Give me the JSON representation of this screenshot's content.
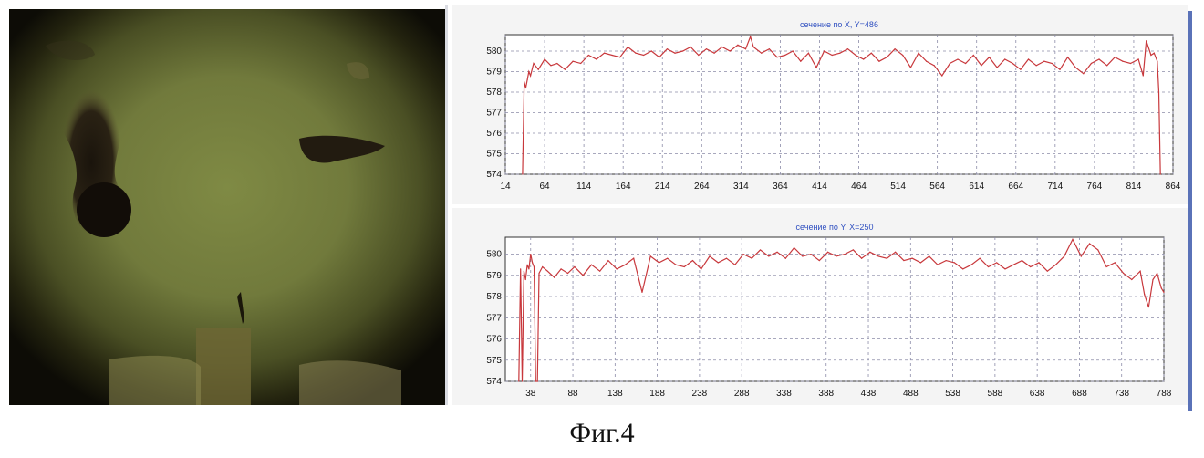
{
  "caption": "Фиг.4",
  "colors": {
    "line": "#c8383c",
    "grid": "#8c8ca8",
    "title": "#3050c0",
    "frame_bg": "#ffffff",
    "panel_bg": "#f4f4f4"
  },
  "photo": {
    "description_icon": "photo-image"
  },
  "chart_data": [
    {
      "type": "line",
      "title": "сечение по X, Y=486",
      "xlabel": "",
      "ylabel": "",
      "x_ticks": [
        14,
        64,
        114,
        164,
        214,
        264,
        314,
        364,
        414,
        464,
        514,
        564,
        614,
        664,
        714,
        764,
        814,
        864
      ],
      "y_ticks": [
        574,
        575,
        576,
        577,
        578,
        579,
        580
      ],
      "xlim": [
        14,
        864
      ],
      "ylim": [
        574,
        580.8
      ],
      "grid": true,
      "series": [
        {
          "x": [
            36,
            38,
            40,
            42,
            44,
            46,
            50,
            56,
            64,
            72,
            80,
            90,
            100,
            110,
            120,
            130,
            140,
            150,
            160,
            170,
            180,
            190,
            200,
            210,
            220,
            230,
            240,
            250,
            260,
            270,
            280,
            290,
            300,
            310,
            320,
            326,
            330,
            340,
            350,
            360,
            370,
            380,
            390,
            400,
            410,
            420,
            430,
            440,
            450,
            460,
            470,
            480,
            490,
            500,
            510,
            520,
            530,
            540,
            550,
            560,
            570,
            580,
            590,
            600,
            610,
            620,
            630,
            640,
            650,
            660,
            670,
            680,
            690,
            700,
            710,
            720,
            730,
            740,
            750,
            760,
            770,
            780,
            790,
            800,
            810,
            820,
            826,
            830,
            836,
            840,
            844,
            846,
            848
          ],
          "y": [
            574,
            578.5,
            578.2,
            578.6,
            579,
            578.8,
            579.4,
            579.1,
            579.6,
            579.3,
            579.4,
            579.1,
            579.5,
            579.4,
            579.8,
            579.6,
            579.9,
            579.8,
            579.7,
            580.2,
            579.9,
            579.8,
            580,
            579.7,
            580.1,
            579.9,
            580,
            580.2,
            579.8,
            580.1,
            579.9,
            580.2,
            580,
            580.3,
            580.1,
            580.7,
            580.2,
            579.9,
            580.1,
            579.7,
            579.8,
            580,
            579.5,
            579.9,
            579.2,
            580,
            579.8,
            579.9,
            580.1,
            579.8,
            579.6,
            579.9,
            579.5,
            579.7,
            580.1,
            579.8,
            579.2,
            579.9,
            579.5,
            579.3,
            578.8,
            579.4,
            579.6,
            579.4,
            579.8,
            579.3,
            579.7,
            579.2,
            579.6,
            579.4,
            579.1,
            579.6,
            579.3,
            579.5,
            579.4,
            579.1,
            579.7,
            579.2,
            578.9,
            579.4,
            579.6,
            579.3,
            579.7,
            579.5,
            579.4,
            579.6,
            578.8,
            580.5,
            579.8,
            579.9,
            579.5,
            578,
            574
          ]
        }
      ]
    },
    {
      "type": "line",
      "title": "сечение по Y, X=250",
      "xlabel": "",
      "ylabel": "",
      "x_ticks": [
        38,
        88,
        138,
        188,
        238,
        288,
        338,
        388,
        438,
        488,
        538,
        588,
        638,
        688,
        738,
        788
      ],
      "y_ticks": [
        574,
        575,
        576,
        577,
        578,
        579,
        580
      ],
      "xlim": [
        8,
        788
      ],
      "ylim": [
        574,
        580.8
      ],
      "grid": true,
      "series": [
        {
          "x": [
            24,
            26,
            28,
            30,
            32,
            34,
            36,
            38,
            40,
            42,
            44,
            46,
            48,
            52,
            58,
            66,
            74,
            82,
            90,
            100,
            110,
            120,
            130,
            140,
            150,
            160,
            170,
            180,
            190,
            200,
            210,
            220,
            230,
            240,
            250,
            260,
            270,
            280,
            290,
            300,
            310,
            320,
            330,
            340,
            350,
            360,
            370,
            380,
            390,
            400,
            410,
            420,
            430,
            440,
            450,
            460,
            470,
            480,
            490,
            500,
            510,
            520,
            530,
            540,
            550,
            560,
            570,
            580,
            590,
            600,
            610,
            620,
            630,
            640,
            650,
            660,
            670,
            680,
            690,
            700,
            710,
            720,
            730,
            740,
            750,
            760,
            765,
            770,
            775,
            780,
            785,
            788
          ],
          "y": [
            574,
            579.3,
            574,
            579.2,
            578.8,
            579.5,
            579.3,
            580,
            579.6,
            579.4,
            574,
            574,
            579.1,
            579.4,
            579.2,
            578.9,
            579.3,
            579.1,
            579.4,
            579,
            579.5,
            579.2,
            579.7,
            579.3,
            579.5,
            579.8,
            578.2,
            579.9,
            579.6,
            579.8,
            579.5,
            579.4,
            579.7,
            579.3,
            579.9,
            579.6,
            579.8,
            579.5,
            580,
            579.8,
            580.2,
            579.9,
            580.1,
            579.8,
            580.3,
            579.9,
            580,
            579.7,
            580.1,
            579.9,
            580,
            580.2,
            579.8,
            580.1,
            579.9,
            579.8,
            580.1,
            579.7,
            579.8,
            579.6,
            579.9,
            579.5,
            579.7,
            579.6,
            579.3,
            579.5,
            579.8,
            579.4,
            579.6,
            579.3,
            579.5,
            579.7,
            579.4,
            579.6,
            579.2,
            579.5,
            579.9,
            580.7,
            579.9,
            580.5,
            580.2,
            579.4,
            579.6,
            579.1,
            578.8,
            579.2,
            578.1,
            577.5,
            578.8,
            579.1,
            578.4,
            578.2
          ]
        }
      ]
    }
  ]
}
